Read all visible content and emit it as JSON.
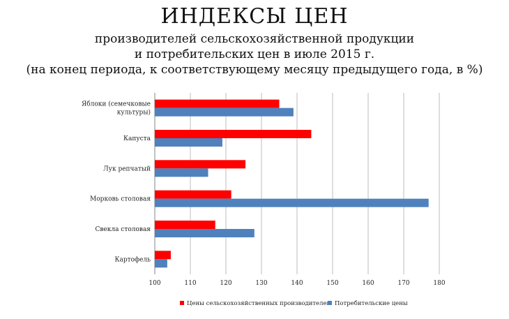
{
  "header": {
    "title": "ИНДЕКСЫ ЦЕН",
    "subtitle_line1": "производителей сельскохозяйственной продукции",
    "subtitle_line2": "и потребительских цен в июле 2015 г.",
    "subtitle_line3": "(на конец периода, к соответствующему месяцу предыдущего года, в %)"
  },
  "chart_data": {
    "type": "bar",
    "orientation": "horizontal",
    "categories": [
      [
        "Яблоки (семечковые",
        "культуры)"
      ],
      [
        "Капуста"
      ],
      [
        "Лук репчатый"
      ],
      [
        "Морковь столовая"
      ],
      [
        "Свекла столовая"
      ],
      [
        "Картофель"
      ]
    ],
    "series": [
      {
        "name": "Цены сельскохозяйственных производителей",
        "color": "#ff0000",
        "values": [
          135,
          144,
          125.5,
          121.5,
          117,
          104.5
        ]
      },
      {
        "name": "Потребительские цены",
        "color": "#4f81bd",
        "values": [
          139,
          119,
          115,
          177,
          128,
          103.5
        ]
      }
    ],
    "xlim": [
      100,
      180
    ],
    "xticks": [
      100,
      110,
      120,
      130,
      140,
      150,
      160,
      170,
      180
    ],
    "grid": true,
    "legend": "bottom"
  }
}
